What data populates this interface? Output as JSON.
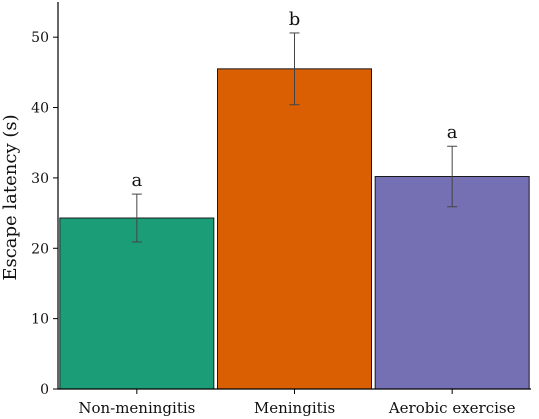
{
  "chart_data": {
    "type": "bar",
    "title": "",
    "xlabel": "",
    "ylabel": "Escape latency (s)",
    "ylim": [
      0,
      55
    ],
    "yticks": [
      0,
      10,
      20,
      30,
      40,
      50
    ],
    "grid": false,
    "categories": [
      "Non-meningitis",
      "Meningitis",
      "Aerobic exercise"
    ],
    "values": [
      24.3,
      45.5,
      30.2
    ],
    "error": [
      3.4,
      5.1,
      4.3
    ],
    "significance": [
      "a",
      "b",
      "a"
    ],
    "colors": [
      "#1b9e77",
      "#d95f02",
      "#7570b3"
    ]
  }
}
